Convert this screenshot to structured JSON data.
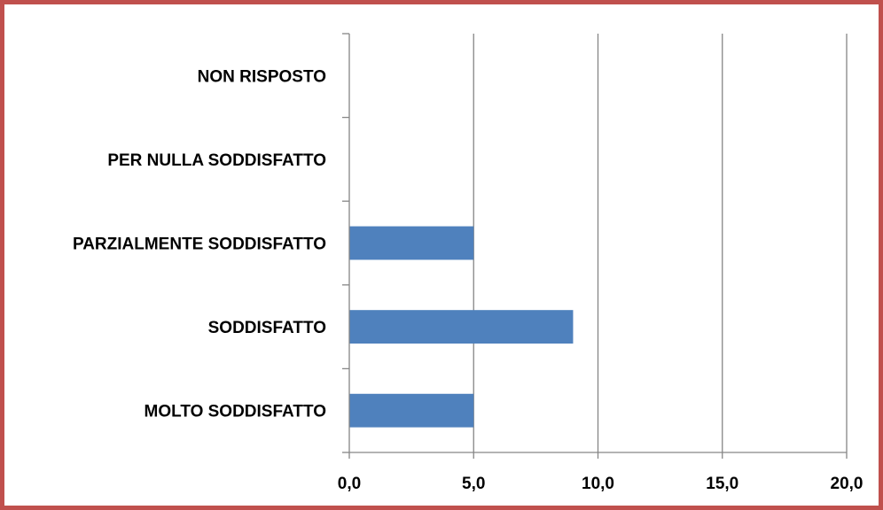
{
  "chart_data": {
    "type": "bar",
    "orientation": "horizontal",
    "categories": [
      "NON RISPOSTO",
      "PER NULLA SODDISFATTO",
      "PARZIALMENTE SODDISFATTO",
      "SODDISFATTO",
      "MOLTO SODDISFATTO"
    ],
    "values": [
      0,
      0,
      5,
      9,
      5
    ],
    "xlim": [
      0,
      20
    ],
    "xticks": [
      "0,0",
      "5,0",
      "10,0",
      "15,0",
      "20,0"
    ],
    "xtick_values": [
      0,
      5,
      10,
      15,
      20
    ],
    "grid": true,
    "legend": "none",
    "bar_color": "#4f81bd",
    "grid_color": "#868686",
    "frame_color": "#c0504d"
  }
}
